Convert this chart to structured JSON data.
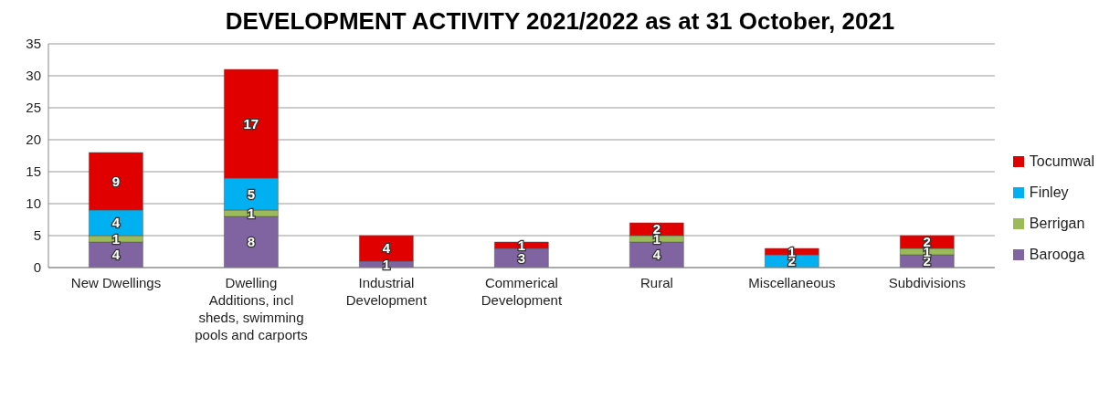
{
  "chart_data": {
    "type": "bar",
    "title": "DEVELOPMENT ACTIVITY 2021/2022 as at 31 October, 2021",
    "categories": [
      "New Dwellings",
      "Dwelling Additions, incl sheds, swimming pools and carports",
      "Industrial Development",
      "Commerical Development",
      "Rural",
      "Miscellaneous",
      "Subdivisions"
    ],
    "series": [
      {
        "name": "Barooga",
        "color": "#8064a2",
        "values": [
          4,
          8,
          1,
          3,
          4,
          0,
          2
        ],
        "value_labels": [
          "4",
          "8",
          "1",
          "3",
          "4",
          null,
          "2"
        ]
      },
      {
        "name": "Berrigan",
        "color": "#9bbb59",
        "values": [
          1,
          1,
          0,
          0,
          1,
          0,
          1
        ],
        "value_labels": [
          "1",
          "1",
          null,
          null,
          "1",
          null,
          "1"
        ]
      },
      {
        "name": "Finley",
        "color": "#00b0f0",
        "values": [
          4,
          5,
          0,
          0,
          0,
          2,
          0
        ],
        "value_labels": [
          "4",
          "5",
          null,
          null,
          null,
          "2",
          null
        ]
      },
      {
        "name": "Tocumwal",
        "color": "#e00000",
        "values": [
          9,
          17,
          4,
          1,
          2,
          1,
          2
        ],
        "value_labels": [
          "9",
          "17",
          "4",
          "1",
          "2",
          "1",
          "2"
        ]
      }
    ],
    "stacked": true,
    "ylim": [
      0,
      35
    ],
    "yticks": [
      0,
      5,
      10,
      15,
      20,
      25,
      30,
      35
    ],
    "grid": "y",
    "legend": "right"
  }
}
